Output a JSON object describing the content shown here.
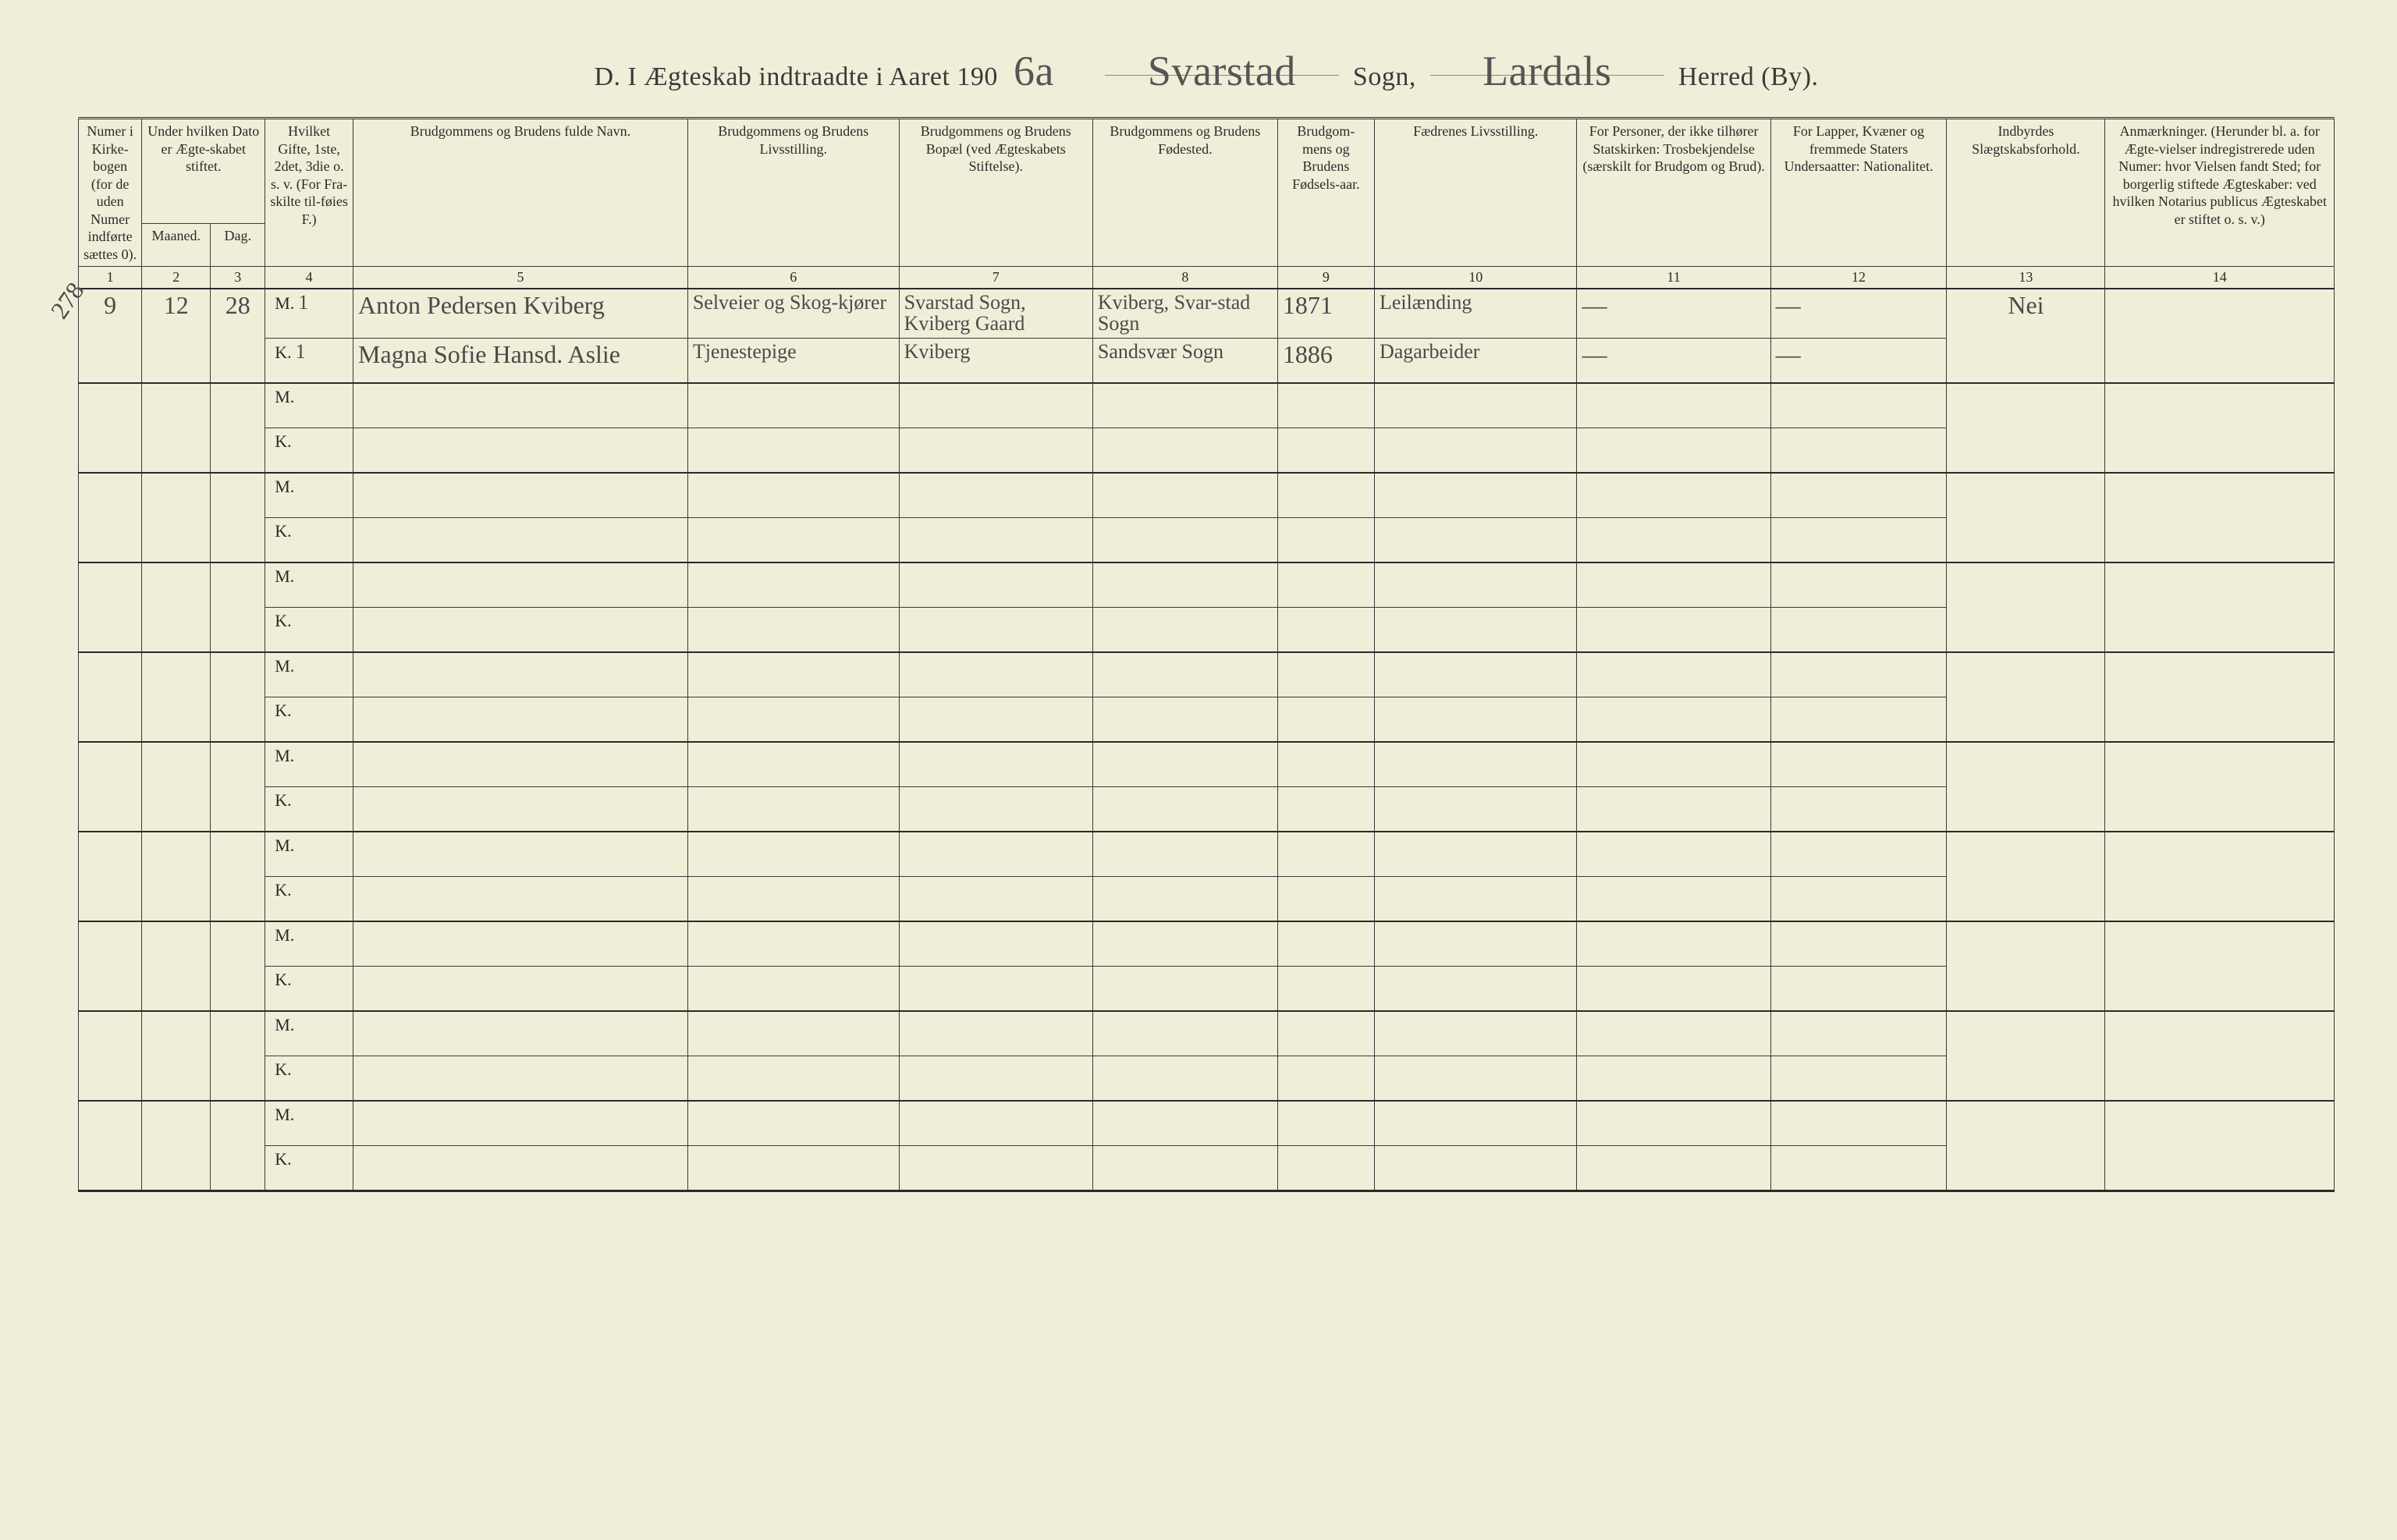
{
  "title": {
    "prefix": "D.  I Ægteskab indtraadte i Aaret 190",
    "year_suffix_hand": "6a",
    "parish_hand": "Svarstad",
    "sogn_label": "Sogn,",
    "district_hand": "Lardals",
    "herred_label": "Herred (By)."
  },
  "margin_number": "278",
  "columns": {
    "h1": "Numer i Kirke-bogen (for de uden Numer indførte sættes 0).",
    "h2a": "Under hvilken Dato er Ægte-skabet stiftet.",
    "h2b_month": "Maaned.",
    "h2b_day": "Dag.",
    "h4": "Hvilket Gifte, 1ste, 2det, 3die o. s. v. (For Fra-skilte til-føies F.)",
    "h5": "Brudgommens og Brudens fulde Navn.",
    "h6": "Brudgommens og Brudens Livsstilling.",
    "h7": "Brudgommens og Brudens Bopæl (ved Ægteskabets Stiftelse).",
    "h8": "Brudgommens og Brudens Fødested.",
    "h9": "Brudgom-mens og Brudens Fødsels-aar.",
    "h10": "Fædrenes Livsstilling.",
    "h11": "For Personer, der ikke tilhører Statskirken: Trosbekjendelse (særskilt for Brudgom og Brud).",
    "h12": "For Lapper, Kvæner og fremmede Staters Undersaatter: Nationalitet.",
    "h13": "Indbyrdes Slægtskabsforhold.",
    "h14": "Anmærkninger. (Herunder bl. a. for Ægte-vielser indregistrerede uden Numer: hvor Vielsen fandt Sted; for borgerlig stiftede Ægteskaber: ved hvilken Notarius publicus Ægteskabet er stiftet o. s. v.)"
  },
  "col_numbers": [
    "1",
    "2",
    "3",
    "4",
    "5",
    "6",
    "7",
    "8",
    "9",
    "10",
    "11",
    "12",
    "13",
    "14"
  ],
  "mk": {
    "m": "M.",
    "k": "K."
  },
  "entries": [
    {
      "num": "9",
      "month": "12",
      "day": "28",
      "m": {
        "gifte": "1",
        "name": "Anton Pedersen Kviberg",
        "occupation": "Selveier og Skog-kjører",
        "residence": "Svarstad Sogn, Kviberg Gaard",
        "birthplace": "Kviberg, Svar-stad Sogn",
        "birthyear": "1871",
        "father_occ": "Leilænding",
        "faith": "—",
        "nationality": "—"
      },
      "k": {
        "gifte": "1",
        "name": "Magna Sofie Hansd. Aslie",
        "occupation": "Tjenestepige",
        "residence": "Kviberg",
        "birthplace": "Sandsvær Sogn",
        "birthyear": "1886",
        "father_occ": "Dagarbeider",
        "faith": "—",
        "nationality": "—"
      },
      "kinship": "Nei",
      "remarks": ""
    }
  ],
  "blank_pairs": 9,
  "colors": {
    "paper": "#f0eed8",
    "ink": "#2a2a2a",
    "hand": "#4a4a4a"
  }
}
